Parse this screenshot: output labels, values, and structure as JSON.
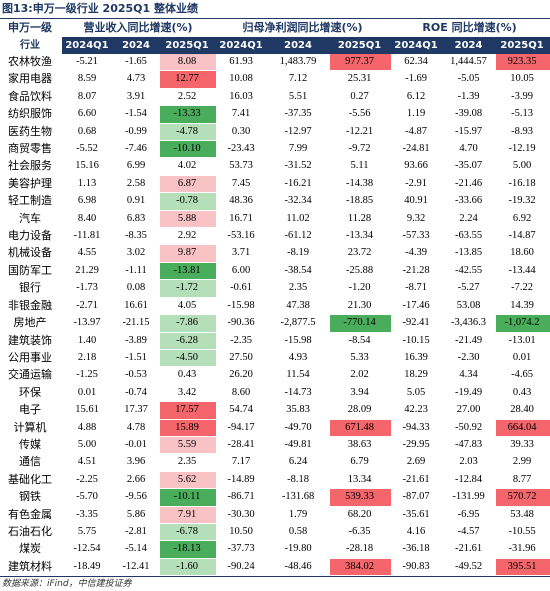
{
  "title": "图13:申万一级行业 2025Q1 整体业绩",
  "header": {
    "industry_top": "申万一级",
    "industry_bottom": "行业",
    "groups": [
      "营业收入同比增速(%)",
      "归母净利润同比增速(%)",
      "ROE 同比增速(%)"
    ],
    "periods": [
      "2024Q1",
      "2024",
      "2025Q1"
    ]
  },
  "colors": {
    "header_bg": "#1f3864",
    "pos_strong": "#f4666b",
    "pos_light": "#f9c3c6",
    "neg_strong": "#4aad5b",
    "neg_light": "#b5dfb9"
  },
  "rows": [
    {
      "industry": "农林牧渔",
      "values": [
        "-5.21",
        "-1.65",
        "8.08",
        "61.93",
        "1,483.79",
        "977.37",
        "62.34",
        "1,444.57",
        "923.35"
      ],
      "hl": {
        "2": "pos_light",
        "5": "pos_strong",
        "8": "pos_strong"
      }
    },
    {
      "industry": "家用电器",
      "values": [
        "8.59",
        "4.73",
        "12.77",
        "10.08",
        "7.12",
        "25.31",
        "-1.69",
        "-5.05",
        "10.05"
      ],
      "hl": {
        "2": "pos_strong"
      }
    },
    {
      "industry": "食品饮料",
      "values": [
        "8.07",
        "3.91",
        "2.52",
        "16.03",
        "5.51",
        "0.27",
        "6.12",
        "-1.39",
        "-3.99"
      ],
      "hl": {}
    },
    {
      "industry": "纺织服饰",
      "values": [
        "6.60",
        "-1.54",
        "-13.33",
        "7.41",
        "-37.35",
        "-5.56",
        "1.19",
        "-39.08",
        "-5.13"
      ],
      "hl": {
        "2": "neg_strong"
      }
    },
    {
      "industry": "医药生物",
      "values": [
        "0.68",
        "-0.99",
        "-4.78",
        "0.30",
        "-12.97",
        "-12.21",
        "-4.87",
        "-15.97",
        "-8.93"
      ],
      "hl": {
        "2": "neg_light"
      }
    },
    {
      "industry": "商贸零售",
      "values": [
        "-5.52",
        "-7.46",
        "-10.10",
        "-23.43",
        "7.99",
        "-9.72",
        "-24.81",
        "4.70",
        "-12.19"
      ],
      "hl": {
        "2": "neg_strong"
      }
    },
    {
      "industry": "社会服务",
      "values": [
        "15.16",
        "6.99",
        "4.02",
        "53.73",
        "-31.52",
        "5.11",
        "93.66",
        "-35.07",
        "5.00"
      ],
      "hl": {}
    },
    {
      "industry": "美容护理",
      "values": [
        "1.13",
        "2.58",
        "6.87",
        "7.45",
        "-16.21",
        "-14.38",
        "-2.91",
        "-21.46",
        "-16.18"
      ],
      "hl": {
        "2": "pos_light"
      }
    },
    {
      "industry": "轻工制造",
      "values": [
        "6.98",
        "0.91",
        "-0.78",
        "48.36",
        "-32.34",
        "-18.85",
        "40.91",
        "-33.66",
        "-19.32"
      ],
      "hl": {
        "2": "neg_light"
      }
    },
    {
      "industry": "汽车",
      "values": [
        "8.40",
        "6.83",
        "5.88",
        "16.71",
        "11.02",
        "11.28",
        "9.32",
        "2.24",
        "6.92"
      ],
      "hl": {
        "2": "pos_light"
      }
    },
    {
      "industry": "电力设备",
      "values": [
        "-11.81",
        "-8.35",
        "2.92",
        "-53.16",
        "-61.12",
        "-13.34",
        "-57.33",
        "-63.55",
        "-14.87"
      ],
      "hl": {}
    },
    {
      "industry": "机械设备",
      "values": [
        "4.55",
        "3.02",
        "9.87",
        "3.71",
        "-8.19",
        "23.72",
        "-4.39",
        "-13.85",
        "18.60"
      ],
      "hl": {
        "2": "pos_light"
      }
    },
    {
      "industry": "国防军工",
      "values": [
        "21.29",
        "-1.11",
        "-13.81",
        "6.00",
        "-38.54",
        "-25.88",
        "-21.28",
        "-42.55",
        "-13.44"
      ],
      "hl": {
        "2": "neg_strong"
      }
    },
    {
      "industry": "银行",
      "values": [
        "-1.73",
        "0.08",
        "-1.72",
        "-0.61",
        "2.35",
        "-1.20",
        "-8.71",
        "-5.27",
        "-7.22"
      ],
      "hl": {
        "2": "neg_light"
      }
    },
    {
      "industry": "非银金融",
      "values": [
        "-2.71",
        "16.61",
        "4.05",
        "-15.98",
        "47.38",
        "21.30",
        "-17.46",
        "53.08",
        "14.39"
      ],
      "hl": {}
    },
    {
      "industry": "房地产",
      "values": [
        "-13.97",
        "-21.15",
        "-7.86",
        "-90.36",
        "-2,877.5",
        "-770.14",
        "-92.41",
        "-3,436.3",
        "-1,074.2"
      ],
      "hl": {
        "2": "neg_light",
        "5": "neg_strong",
        "8": "neg_strong"
      }
    },
    {
      "industry": "建筑装饰",
      "values": [
        "1.40",
        "-3.89",
        "-6.28",
        "-2.35",
        "-15.98",
        "-8.54",
        "-10.15",
        "-21.49",
        "-13.01"
      ],
      "hl": {
        "2": "neg_light"
      }
    },
    {
      "industry": "公用事业",
      "values": [
        "2.18",
        "-1.51",
        "-4.50",
        "27.50",
        "4.93",
        "5.33",
        "16.39",
        "-2.30",
        "0.01"
      ],
      "hl": {
        "2": "neg_light"
      }
    },
    {
      "industry": "交通运输",
      "values": [
        "-1.25",
        "-0.53",
        "0.43",
        "26.20",
        "11.54",
        "2.02",
        "18.29",
        "4.34",
        "-4.65"
      ],
      "hl": {}
    },
    {
      "industry": "环保",
      "values": [
        "0.01",
        "-0.74",
        "3.42",
        "8.60",
        "-14.73",
        "3.94",
        "5.05",
        "-19.49",
        "0.43"
      ],
      "hl": {}
    },
    {
      "industry": "电子",
      "values": [
        "15.61",
        "17.37",
        "17.57",
        "54.74",
        "35.83",
        "28.09",
        "42.23",
        "27.00",
        "28.40"
      ],
      "hl": {
        "2": "pos_strong"
      }
    },
    {
      "industry": "计算机",
      "values": [
        "4.88",
        "4.78",
        "15.89",
        "-94.17",
        "-49.70",
        "671.48",
        "-94.33",
        "-50.92",
        "664.04"
      ],
      "hl": {
        "2": "pos_strong",
        "5": "pos_strong",
        "8": "pos_strong"
      }
    },
    {
      "industry": "传媒",
      "values": [
        "5.00",
        "-0.01",
        "5.59",
        "-28.41",
        "-49.81",
        "38.63",
        "-29.95",
        "-47.83",
        "39.33"
      ],
      "hl": {
        "2": "pos_light"
      }
    },
    {
      "industry": "通信",
      "values": [
        "4.51",
        "3.96",
        "2.35",
        "7.17",
        "6.24",
        "6.79",
        "2.69",
        "2.03",
        "2.99"
      ],
      "hl": {}
    },
    {
      "industry": "基础化工",
      "values": [
        "-2.25",
        "2.66",
        "5.62",
        "-14.89",
        "-8.18",
        "13.34",
        "-21.61",
        "-12.84",
        "8.77"
      ],
      "hl": {
        "2": "pos_light"
      }
    },
    {
      "industry": "钢铁",
      "values": [
        "-5.70",
        "-9.56",
        "-10.11",
        "-86.71",
        "-131.68",
        "539.33",
        "-87.07",
        "-131.99",
        "570.72"
      ],
      "hl": {
        "2": "neg_strong",
        "5": "pos_strong",
        "8": "pos_strong"
      }
    },
    {
      "industry": "有色金属",
      "values": [
        "-3.35",
        "5.86",
        "7.91",
        "-30.30",
        "1.79",
        "68.20",
        "-35.61",
        "-6.95",
        "53.48"
      ],
      "hl": {
        "2": "pos_light"
      }
    },
    {
      "industry": "石油石化",
      "values": [
        "5.75",
        "-2.81",
        "-6.78",
        "10.50",
        "0.58",
        "-6.35",
        "4.16",
        "-4.57",
        "-10.55"
      ],
      "hl": {
        "2": "neg_light"
      }
    },
    {
      "industry": "煤炭",
      "values": [
        "-12.54",
        "-5.14",
        "-18.13",
        "-37.73",
        "-19.80",
        "-28.18",
        "-36.18",
        "-21.61",
        "-31.96"
      ],
      "hl": {
        "2": "neg_strong"
      }
    },
    {
      "industry": "建筑材料",
      "values": [
        "-18.49",
        "-12.41",
        "-1.60",
        "-90.24",
        "-48.46",
        "384.02",
        "-90.83",
        "-49.52",
        "395.51"
      ],
      "hl": {
        "2": "neg_light",
        "5": "pos_strong",
        "8": "pos_strong"
      }
    }
  ],
  "source": "数据来源：iFind，中信建投证券"
}
